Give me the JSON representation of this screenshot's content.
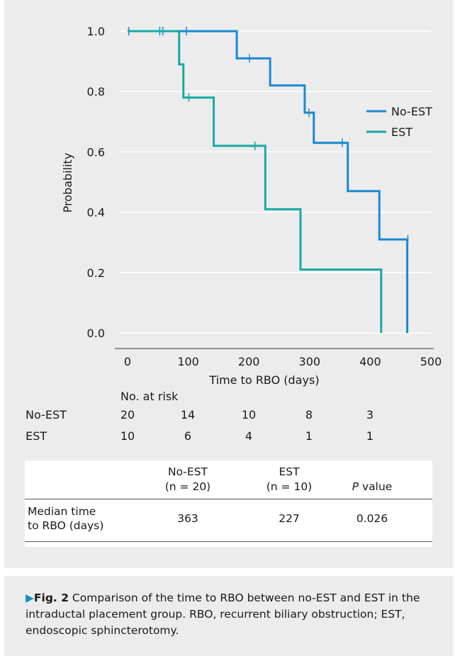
{
  "chart_data": {
    "type": "line",
    "step": true,
    "xlabel": "Time to RBO (days)",
    "ylabel": "Probability",
    "xticks": [
      0,
      100,
      200,
      300,
      400,
      500
    ],
    "yticks": [
      "0.0",
      "0.2",
      "0.4",
      "0.6",
      "0.8",
      "1.0"
    ],
    "xlim": [
      0,
      500
    ],
    "ylim": [
      0,
      1.0
    ],
    "grid": "horizontal",
    "legend_position": "right",
    "series": [
      {
        "name": "No-EST",
        "color": "#1a8ad1",
        "steps": [
          [
            0,
            1.0
          ],
          [
            180,
            0.91
          ],
          [
            235,
            0.82
          ],
          [
            292,
            0.73
          ],
          [
            307,
            0.63
          ],
          [
            363,
            0.47
          ],
          [
            415,
            0.31
          ],
          [
            461,
            0.0
          ]
        ],
        "censored": [
          [
            2,
            1.0
          ],
          [
            53,
            1.0
          ],
          [
            58,
            1.0
          ],
          [
            97,
            1.0
          ],
          [
            201,
            0.91
          ],
          [
            299,
            0.73
          ],
          [
            354,
            0.63
          ],
          [
            462,
            0.31
          ]
        ]
      },
      {
        "name": "EST",
        "color": "#17aaa4",
        "steps": [
          [
            0,
            1.0
          ],
          [
            85,
            0.89
          ],
          [
            92,
            0.78
          ],
          [
            142,
            0.62
          ],
          [
            227,
            0.41
          ],
          [
            285,
            0.21
          ],
          [
            418,
            0.0
          ]
        ],
        "censored": [
          [
            101,
            0.78
          ],
          [
            210,
            0.62
          ]
        ]
      }
    ]
  },
  "risk_table": {
    "title": "No. at risk",
    "rows": [
      {
        "label": "No-EST",
        "values": [
          "20",
          "14",
          "10",
          "8",
          "3"
        ]
      },
      {
        "label": "EST",
        "values": [
          "10",
          "6",
          "4",
          "1",
          "1"
        ]
      }
    ]
  },
  "summary_table": {
    "headers": [
      {
        "line1": "No-EST",
        "line2": "(n = 20)"
      },
      {
        "line1": "EST",
        "line2": "(n = 10)"
      },
      {
        "line1": "",
        "line2_italic": "P",
        "line2": " value"
      }
    ],
    "row_label_line1": "Median time",
    "row_label_line2": "to RBO (days)",
    "values": [
      "363",
      "227",
      "0.026"
    ]
  },
  "caption": {
    "arrow": "▶",
    "figno": "Fig. 2",
    "text": " Comparison of the time to RBO between no-EST and EST in the intraductal placement group. RBO, recurrent biliary obstruction; EST, endoscopic sphincterotomy."
  }
}
